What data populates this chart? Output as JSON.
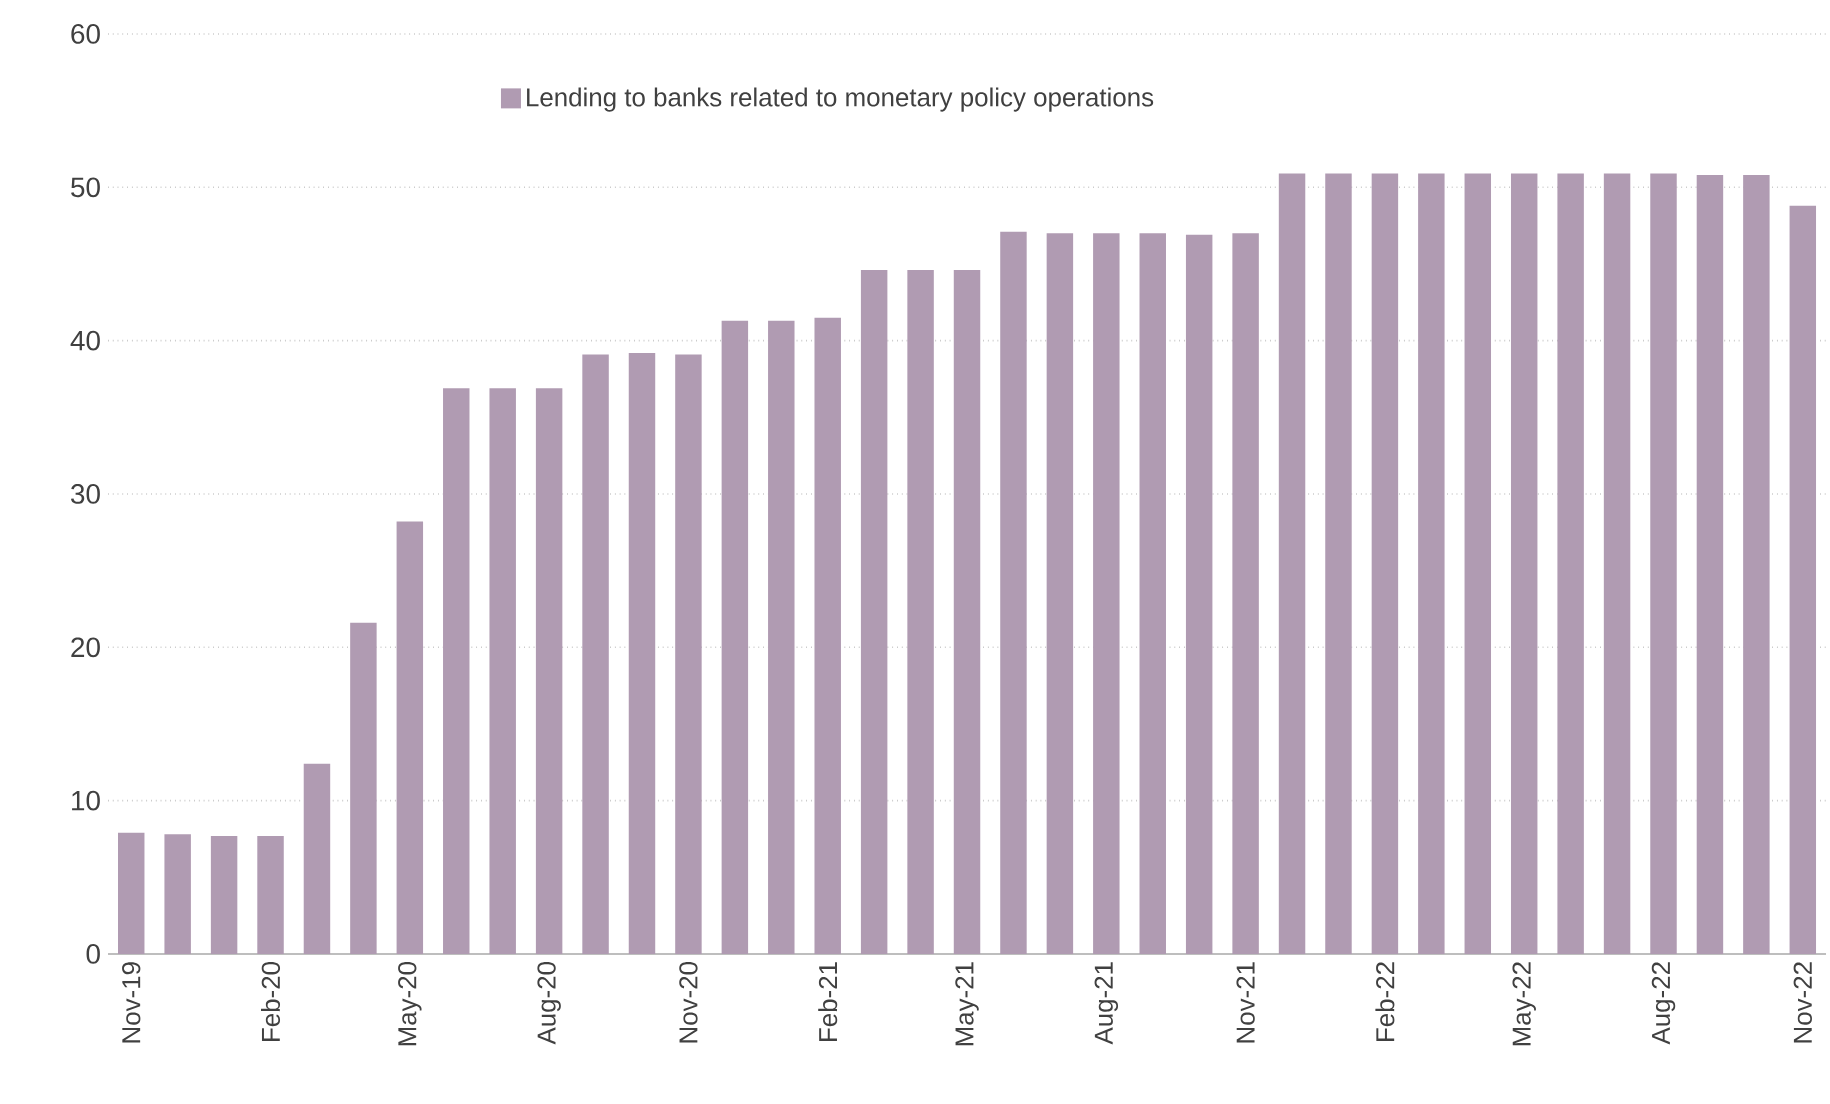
{
  "chart_data": {
    "type": "bar",
    "categories": [
      "Nov-19",
      null,
      null,
      "Feb-20",
      null,
      null,
      "May-20",
      null,
      null,
      "Aug-20",
      null,
      null,
      "Nov-20",
      null,
      null,
      "Feb-21",
      null,
      null,
      "May-21",
      null,
      null,
      "Aug-21",
      null,
      null,
      "Nov-21",
      null,
      null,
      "Feb-22",
      null,
      null,
      "May-22",
      null,
      null,
      "Aug-22",
      null,
      null,
      "Nov-22"
    ],
    "series": [
      {
        "name": "Lending to banks related to monetary policy operations",
        "color": "#b09bb2",
        "values": [
          7.9,
          7.8,
          7.7,
          7.7,
          12.4,
          21.6,
          28.2,
          36.9,
          36.9,
          36.9,
          39.1,
          39.2,
          39.1,
          41.3,
          41.3,
          41.5,
          44.6,
          44.6,
          44.6,
          47.1,
          47.0,
          47.0,
          47.0,
          46.9,
          47.0,
          50.9,
          50.9,
          50.9,
          50.9,
          50.9,
          50.9,
          50.9,
          50.9,
          50.9,
          50.8,
          50.8,
          48.8
        ]
      }
    ],
    "ylim": [
      0,
      60
    ],
    "yticks": [
      0,
      10,
      20,
      30,
      40,
      50,
      60
    ],
    "grid": "y",
    "legend": "top"
  }
}
